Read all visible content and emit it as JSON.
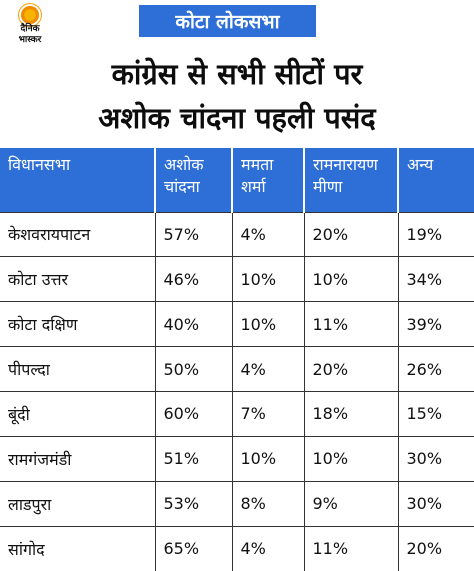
{
  "brand": {
    "line1": "दैनिक",
    "line2": "भास्कर",
    "sun_color": "#f5a300"
  },
  "tag": {
    "text": "कोटा लोकसभा",
    "color": "#2d6fd6"
  },
  "headline": {
    "line1": "कांग्रेस से सभी सीटों पर",
    "line2": "अशोक चांदना पहली पसंद"
  },
  "chart_data": {
    "type": "table",
    "columns": [
      "विधानसभा",
      "अशोक चांदना",
      "ममता शर्मा",
      "रामनारायण मीणा",
      "अन्य"
    ],
    "header_lines": [
      [
        "विधानसभा",
        ""
      ],
      [
        "अशोक",
        "चांदना"
      ],
      [
        "ममता",
        "शर्मा"
      ],
      [
        "रामनारायण",
        "मीणा"
      ],
      [
        "अन्य",
        ""
      ]
    ],
    "rows": [
      [
        "केशवरायपाटन",
        "57%",
        "4%",
        "20%",
        "19%"
      ],
      [
        "कोटा उत्तर",
        "46%",
        "10%",
        "10%",
        "34%"
      ],
      [
        "कोटा दक्षिण",
        "40%",
        "10%",
        "11%",
        "39%"
      ],
      [
        "पीपल्दा",
        "50%",
        "4%",
        "20%",
        "26%"
      ],
      [
        "बूंदी",
        "60%",
        "7%",
        "18%",
        "15%"
      ],
      [
        "रामगंजमंडी",
        "51%",
        "10%",
        "10%",
        "30%"
      ],
      [
        "लाडपुरा",
        "53%",
        "8%",
        "9%",
        "30%"
      ],
      [
        "सांगोद",
        "65%",
        "4%",
        "11%",
        "20%"
      ]
    ],
    "header_color": "#2d6fd6"
  }
}
